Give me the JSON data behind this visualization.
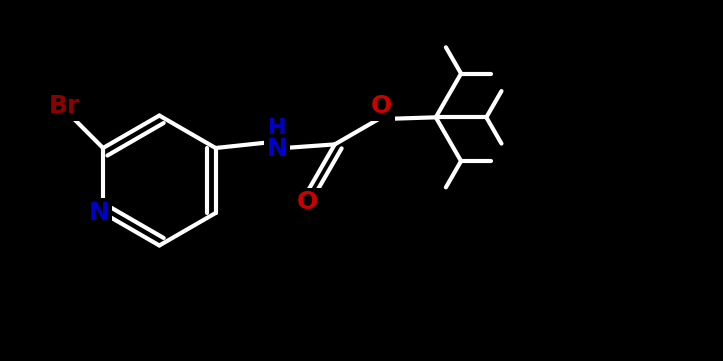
{
  "background_color": "#000000",
  "bond_color": "#ffffff",
  "bond_width": 3.0,
  "atom_colors": {
    "Br": "#8b0000",
    "N": "#0000cd",
    "O": "#cc0000",
    "C": "#ffffff"
  },
  "font_size_large": 18,
  "font_size_small": 16,
  "fig_width": 7.23,
  "fig_height": 3.61,
  "xlim": [
    0,
    10
  ],
  "ylim": [
    0,
    5
  ]
}
